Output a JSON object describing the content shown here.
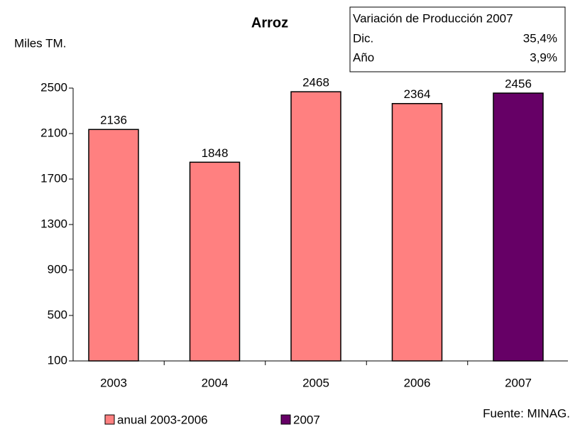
{
  "chart_data": {
    "type": "bar",
    "title": "Arroz",
    "y_label": "Miles TM.",
    "categories": [
      "2003",
      "2004",
      "2005",
      "2006",
      "2007"
    ],
    "series": [
      {
        "name": "anual 2003-2006",
        "color": "#ff8080",
        "values": [
          2136,
          1848,
          2468,
          2364,
          null
        ]
      },
      {
        "name": "2007",
        "color": "#660066",
        "values": [
          null,
          null,
          null,
          null,
          2456
        ]
      }
    ],
    "ylim": [
      100,
      2500
    ],
    "yticks": [
      100,
      500,
      900,
      1300,
      1700,
      2100,
      2500
    ],
    "info_box": {
      "title": "Variación de Producción 2007",
      "rows": [
        [
          "Dic.",
          "35,4%"
        ],
        [
          "Año",
          "3,9%"
        ]
      ]
    },
    "source": "Fuente: MINAG."
  }
}
